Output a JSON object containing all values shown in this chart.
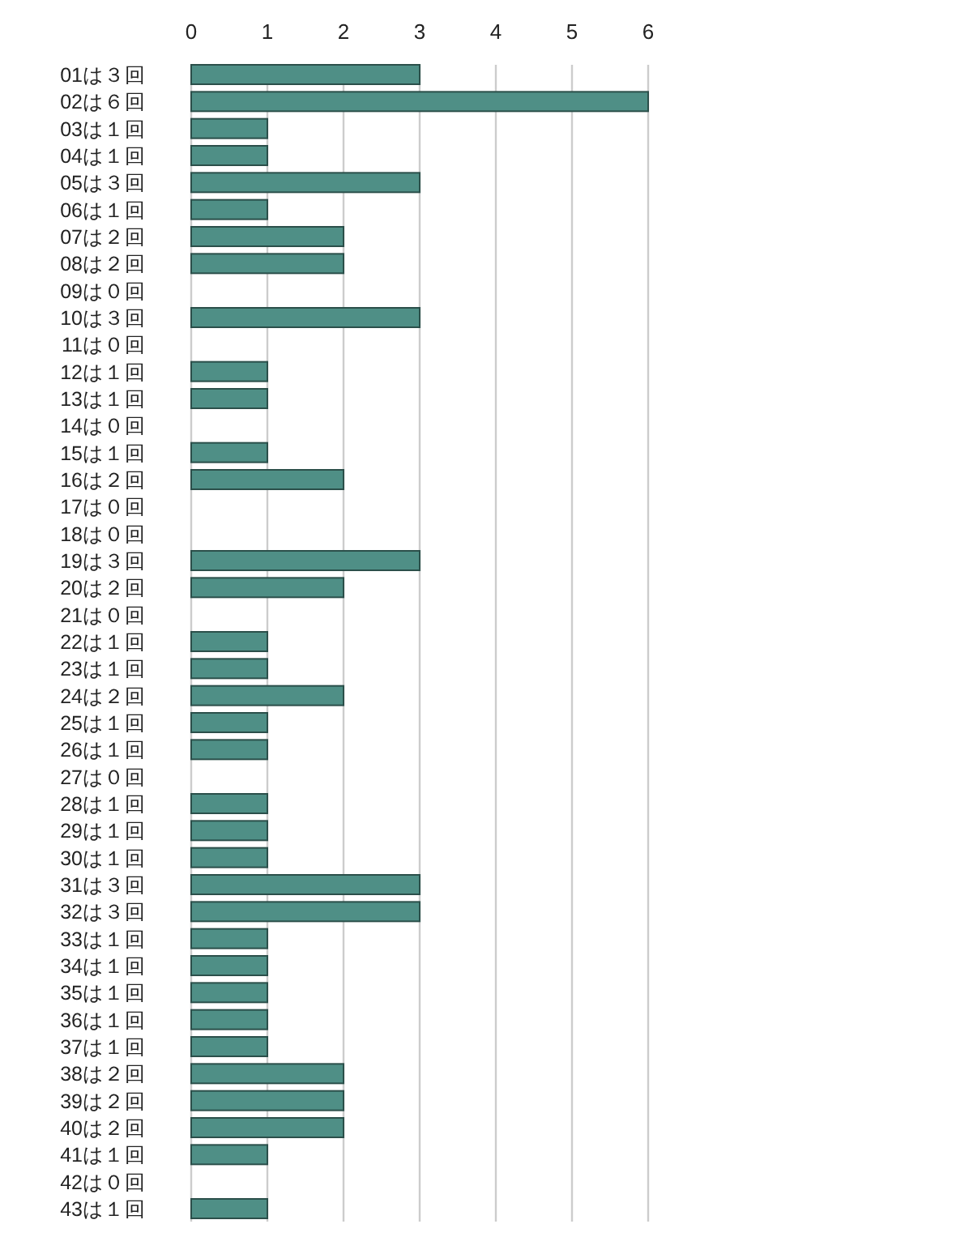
{
  "chart_data": {
    "type": "bar",
    "orientation": "horizontal",
    "categories": [
      "01は３回",
      "02は６回",
      "03は１回",
      "04は１回",
      "05は３回",
      "06は１回",
      "07は２回",
      "08は２回",
      "09は０回",
      "10は３回",
      "11は０回",
      "12は１回",
      "13は１回",
      "14は０回",
      "15は１回",
      "16は２回",
      "17は０回",
      "18は０回",
      "19は３回",
      "20は２回",
      "21は０回",
      "22は１回",
      "23は１回",
      "24は２回",
      "25は１回",
      "26は１回",
      "27は０回",
      "28は１回",
      "29は１回",
      "30は１回",
      "31は３回",
      "32は３回",
      "33は１回",
      "34は１回",
      "35は１回",
      "36は１回",
      "37は１回",
      "38は２回",
      "39は２回",
      "40は２回",
      "41は１回",
      "42は０回",
      "43は１回"
    ],
    "values": [
      3,
      6,
      1,
      1,
      3,
      1,
      2,
      2,
      0,
      3,
      0,
      1,
      1,
      0,
      1,
      2,
      0,
      0,
      3,
      2,
      0,
      1,
      1,
      2,
      1,
      1,
      0,
      1,
      1,
      1,
      3,
      3,
      1,
      1,
      1,
      1,
      1,
      2,
      2,
      2,
      1,
      0,
      1
    ],
    "color": "#4f8f86",
    "xlim": [
      0,
      6
    ],
    "xticks": [
      0,
      1,
      2,
      3,
      4,
      5,
      6
    ],
    "grid": "x"
  }
}
